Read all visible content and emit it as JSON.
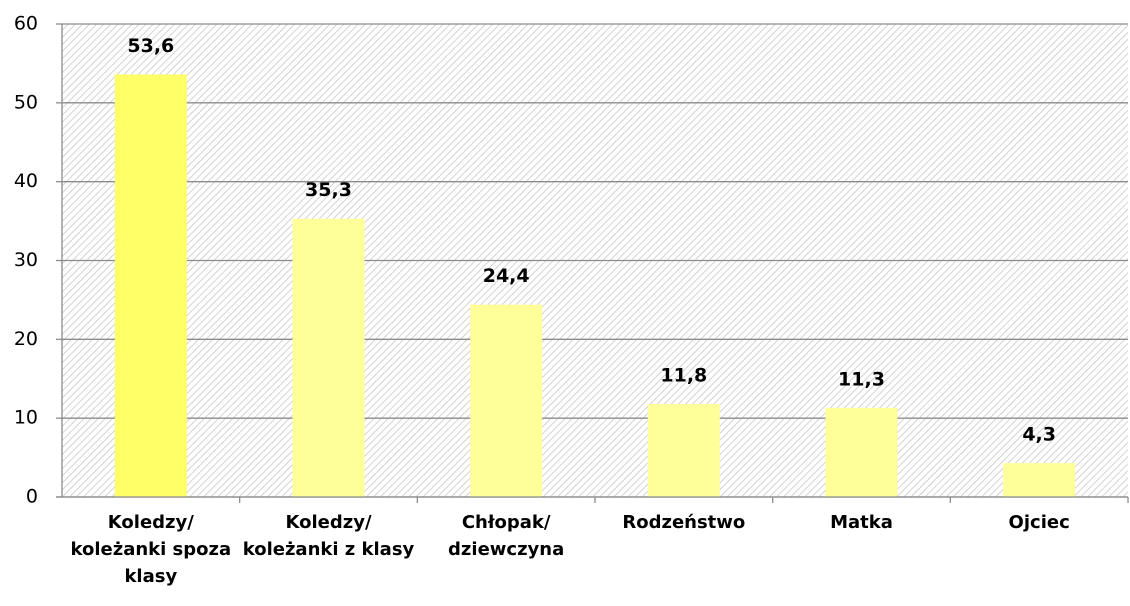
{
  "chart_data": {
    "type": "bar",
    "categories": [
      "Koledzy/ koleżanki spoza klasy",
      "Koledzy/ koleżanki z klasy",
      "Chłopak/ dziewczyna",
      "Rodzeństwo",
      "Matka",
      "Ojciec"
    ],
    "values": [
      53.6,
      35.3,
      24.4,
      11.8,
      11.3,
      4.3
    ],
    "value_labels": [
      "53,6",
      "35,3",
      "24,4",
      "11,8",
      "11,3",
      "4,3"
    ],
    "colors": [
      "#ffff66",
      "#ffff99",
      "#ffff99",
      "#ffff99",
      "#ffff99",
      "#ffff99"
    ],
    "ylim": [
      0,
      60
    ],
    "yticks": [
      0,
      10,
      20,
      30,
      40,
      50,
      60
    ],
    "grid": true
  }
}
